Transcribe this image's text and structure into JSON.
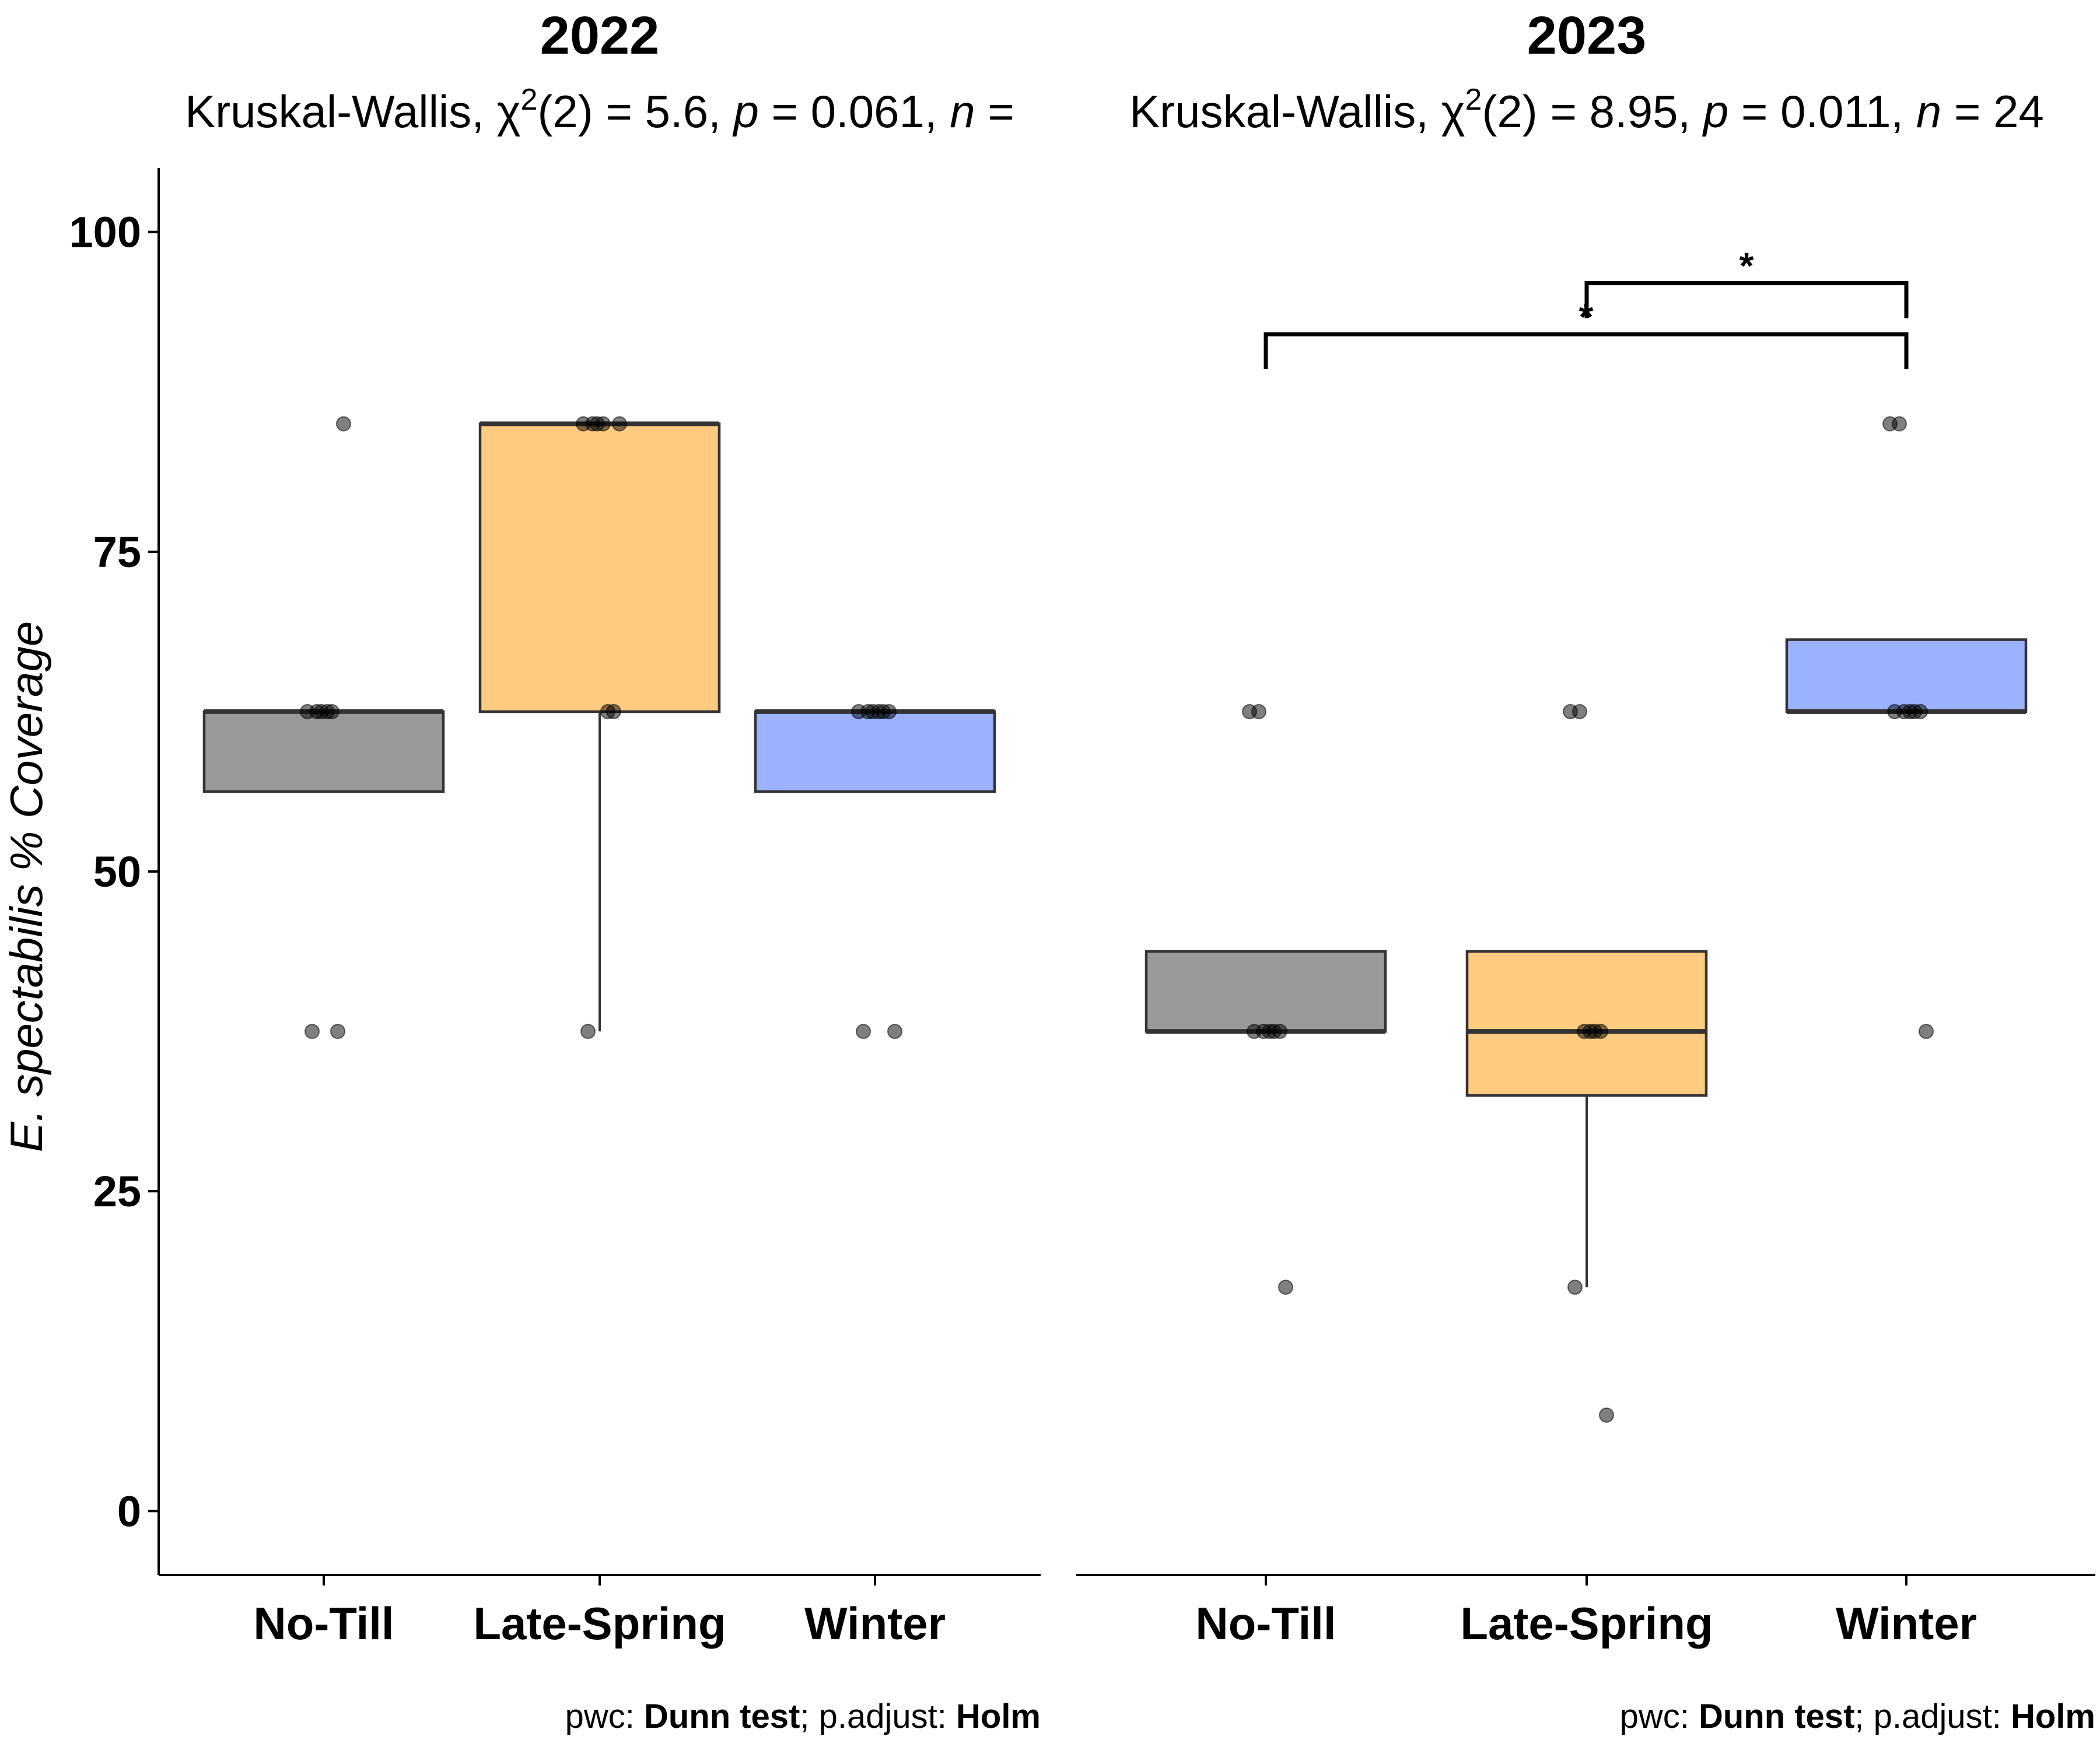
{
  "chart_data": {
    "type": "boxplot",
    "y_axis_title": "E. spectabilis % Coverage",
    "ylim": [
      -5,
      105
    ],
    "y_ticks": [
      0,
      25,
      50,
      75,
      100
    ],
    "y_tick_labels": [
      "0",
      "25",
      "50",
      "75",
      "100"
    ],
    "categories": [
      "No-Till",
      "Late-Spring",
      "Winter"
    ],
    "colors": {
      "No-Till": "#999999",
      "Late-Spring": "#FECB80",
      "Winter": "#9AB2FF"
    },
    "panels": [
      {
        "title": "2022",
        "subtitle_parts": [
          {
            "text": "Kruskal-Wallis, χ",
            "style": "normal"
          },
          {
            "text": "2",
            "style": "sup"
          },
          {
            "text": "(2) = 5.6, ",
            "style": "normal"
          },
          {
            "text": "p",
            "style": "italic"
          },
          {
            "text": " = 0.061, ",
            "style": "normal"
          },
          {
            "text": "n",
            "style": "italic"
          },
          {
            "text": " = ",
            "style": "normal"
          }
        ],
        "caption_parts": [
          {
            "text": "pwc: ",
            "style": "normal"
          },
          {
            "text": "Dunn test",
            "style": "bold"
          },
          {
            "text": "; p.adjust: ",
            "style": "normal"
          },
          {
            "text": "Holm",
            "style": "bold"
          }
        ],
        "boxes": [
          {
            "category": "No-Till",
            "q1": 56.25,
            "median": 62.5,
            "q3": 62.5,
            "whisker_low": 56.25,
            "whisker_high": 62.5,
            "points": [
              62.5,
              62.5,
              62.5,
              62.5,
              62.5,
              37.5,
              37.5,
              85
            ]
          },
          {
            "category": "Late-Spring",
            "q1": 62.5,
            "median": 85,
            "q3": 85,
            "whisker_low": 37.5,
            "whisker_high": 85,
            "points": [
              85,
              85,
              85,
              85,
              62.5,
              62.5,
              37.5,
              85
            ]
          },
          {
            "category": "Winter",
            "q1": 56.25,
            "median": 62.5,
            "q3": 62.5,
            "whisker_low": 56.25,
            "whisker_high": 62.5,
            "points": [
              62.5,
              62.5,
              62.5,
              62.5,
              62.5,
              62.5,
              37.5,
              37.5
            ]
          }
        ],
        "brackets": []
      },
      {
        "title": "2023",
        "subtitle_parts": [
          {
            "text": "Kruskal-Wallis, χ",
            "style": "normal"
          },
          {
            "text": "2",
            "style": "sup"
          },
          {
            "text": "(2) = 8.95, ",
            "style": "normal"
          },
          {
            "text": "p",
            "style": "italic"
          },
          {
            "text": " = 0.011, ",
            "style": "normal"
          },
          {
            "text": "n",
            "style": "italic"
          },
          {
            "text": " = 24",
            "style": "normal"
          }
        ],
        "caption_parts": [
          {
            "text": "pwc: ",
            "style": "normal"
          },
          {
            "text": "Dunn test",
            "style": "bold"
          },
          {
            "text": "; p.adjust: ",
            "style": "normal"
          },
          {
            "text": "Holm",
            "style": "bold"
          }
        ],
        "boxes": [
          {
            "category": "No-Till",
            "q1": 37.5,
            "median": 37.5,
            "q3": 43.75,
            "whisker_low": 37.5,
            "whisker_high": 43.75,
            "points": [
              62.5,
              62.5,
              37.5,
              37.5,
              37.5,
              37.5,
              37.5,
              17.5
            ]
          },
          {
            "category": "Late-Spring",
            "q1": 32.5,
            "median": 37.5,
            "q3": 43.75,
            "whisker_low": 17.5,
            "whisker_high": 43.75,
            "points": [
              62.5,
              62.5,
              37.5,
              37.5,
              37.5,
              37.5,
              17.5,
              7.5
            ]
          },
          {
            "category": "Winter",
            "q1": 62.5,
            "median": 62.5,
            "q3": 68.125,
            "whisker_low": 62.5,
            "whisker_high": 68.125,
            "points": [
              85,
              85,
              62.5,
              62.5,
              62.5,
              62.5,
              62.5,
              37.5
            ]
          }
        ],
        "brackets": [
          {
            "from": "Late-Spring",
            "to": "Winter",
            "y": 96,
            "label": "*"
          },
          {
            "from": "No-Till",
            "to": "Winter",
            "y": 92,
            "label": "*"
          }
        ]
      }
    ]
  }
}
